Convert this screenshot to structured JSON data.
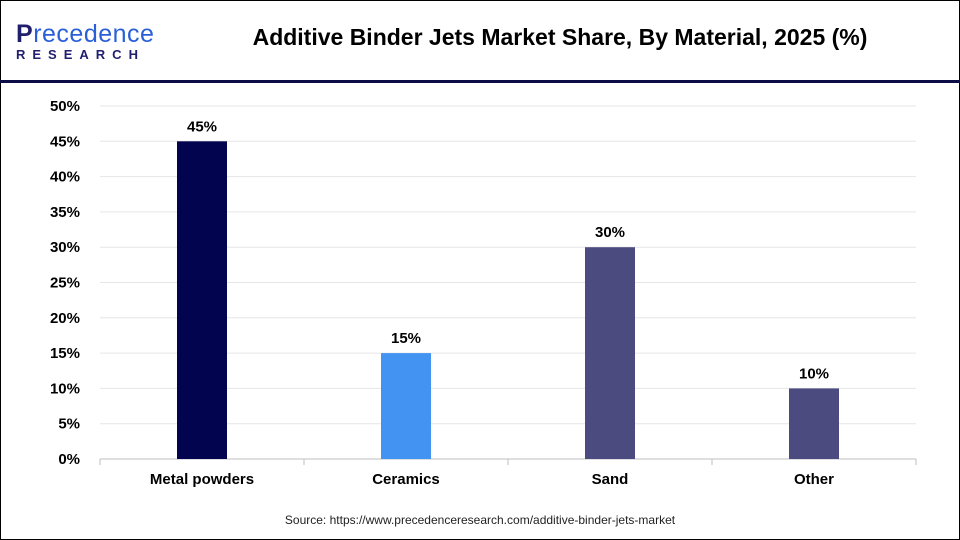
{
  "logo": {
    "line1_first": "P",
    "line1_rest": "recedence",
    "line2": "RESEARCH"
  },
  "colors": {
    "header_line": "#0d0d45",
    "grid": "#e6e6e6"
  },
  "chart_data": {
    "type": "bar",
    "title": "Additive Binder Jets Market Share, By Material, 2025 (%)",
    "categories": [
      "Metal powders",
      "Ceramics",
      "Sand",
      "Other"
    ],
    "values": [
      45,
      15,
      30,
      10
    ],
    "data_labels": [
      "45%",
      "15%",
      "30%",
      "10%"
    ],
    "bar_colors": [
      "#03044f",
      "#4293f2",
      "#4b4b80",
      "#4b4b80"
    ],
    "ylim": [
      0,
      50
    ],
    "yticks": [
      "0%",
      "5%",
      "10%",
      "15%",
      "20%",
      "25%",
      "30%",
      "35%",
      "40%",
      "45%",
      "50%"
    ],
    "grid": true,
    "xlabel": "",
    "ylabel": ""
  },
  "source": "Source: https://www.precedenceresearch.com/additive-binder-jets-market"
}
